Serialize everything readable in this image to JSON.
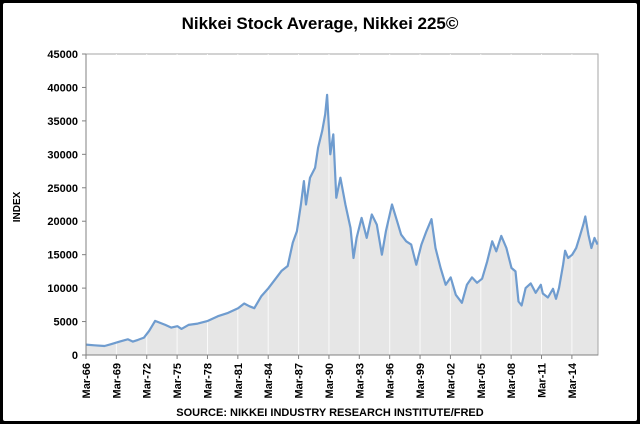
{
  "chart_data": {
    "type": "area",
    "title": "Nikkei Stock Average, Nikkei 225©",
    "ylabel": "INDEX",
    "xlabel": "SOURCE: NIKKEI INDUSTRY RESEARCH INSTITUTE/FRED",
    "ylim": [
      0,
      45000
    ],
    "yticks": [
      0,
      5000,
      10000,
      15000,
      20000,
      25000,
      30000,
      35000,
      40000,
      45000
    ],
    "xlim": [
      1966.17,
      2016.75
    ],
    "xticks": [
      {
        "label": "Mar-66",
        "year": 1966.17
      },
      {
        "label": "Mar-69",
        "year": 1969.17
      },
      {
        "label": "Mar-72",
        "year": 1972.17
      },
      {
        "label": "Mar-75",
        "year": 1975.17
      },
      {
        "label": "Mar-78",
        "year": 1978.17
      },
      {
        "label": "Mar-81",
        "year": 1981.17
      },
      {
        "label": "Mar-84",
        "year": 1984.17
      },
      {
        "label": "Mar-87",
        "year": 1987.17
      },
      {
        "label": "Mar-90",
        "year": 1990.17
      },
      {
        "label": "Mar-93",
        "year": 1993.17
      },
      {
        "label": "Mar-96",
        "year": 1996.17
      },
      {
        "label": "Mar-99",
        "year": 1999.17
      },
      {
        "label": "Mar-02",
        "year": 2002.17
      },
      {
        "label": "Mar-05",
        "year": 2005.17
      },
      {
        "label": "Mar-08",
        "year": 2008.17
      },
      {
        "label": "Mar-11",
        "year": 2011.17
      },
      {
        "label": "Mar-14",
        "year": 2014.17
      }
    ],
    "grid": {
      "horizontal": false,
      "vertical": true
    },
    "legend": "none",
    "series": [
      {
        "color": "#6f9ccf",
        "fill": "#e6e6e6",
        "points": [
          [
            1966.17,
            1550
          ],
          [
            1967.0,
            1450
          ],
          [
            1968.0,
            1350
          ],
          [
            1968.6,
            1600
          ],
          [
            1969.5,
            2000
          ],
          [
            1970.3,
            2350
          ],
          [
            1970.8,
            2000
          ],
          [
            1971.3,
            2250
          ],
          [
            1971.9,
            2600
          ],
          [
            1972.4,
            3600
          ],
          [
            1973.0,
            5100
          ],
          [
            1973.5,
            4800
          ],
          [
            1974.0,
            4500
          ],
          [
            1974.6,
            4100
          ],
          [
            1975.2,
            4300
          ],
          [
            1975.6,
            3900
          ],
          [
            1976.3,
            4500
          ],
          [
            1977.2,
            4700
          ],
          [
            1978.2,
            5100
          ],
          [
            1979.2,
            5800
          ],
          [
            1980.2,
            6300
          ],
          [
            1981.2,
            7000
          ],
          [
            1981.8,
            7700
          ],
          [
            1982.3,
            7300
          ],
          [
            1982.8,
            7000
          ],
          [
            1983.5,
            8800
          ],
          [
            1984.2,
            10000
          ],
          [
            1984.8,
            11200
          ],
          [
            1985.5,
            12600
          ],
          [
            1986.1,
            13300
          ],
          [
            1986.6,
            16800
          ],
          [
            1987.0,
            18500
          ],
          [
            1987.4,
            22500
          ],
          [
            1987.7,
            26000
          ],
          [
            1987.9,
            22500
          ],
          [
            1988.3,
            26500
          ],
          [
            1988.8,
            28000
          ],
          [
            1989.1,
            31000
          ],
          [
            1989.5,
            33500
          ],
          [
            1989.8,
            36000
          ],
          [
            1989.99,
            38900
          ],
          [
            1990.3,
            30000
          ],
          [
            1990.6,
            33000
          ],
          [
            1990.9,
            23500
          ],
          [
            1991.3,
            26500
          ],
          [
            1991.8,
            22500
          ],
          [
            1992.3,
            19000
          ],
          [
            1992.6,
            14500
          ],
          [
            1992.9,
            17500
          ],
          [
            1993.4,
            20500
          ],
          [
            1993.9,
            17500
          ],
          [
            1994.4,
            21000
          ],
          [
            1994.9,
            19500
          ],
          [
            1995.4,
            15000
          ],
          [
            1995.8,
            18500
          ],
          [
            1996.4,
            22500
          ],
          [
            1996.9,
            20000
          ],
          [
            1997.3,
            18000
          ],
          [
            1997.8,
            17000
          ],
          [
            1998.3,
            16500
          ],
          [
            1998.8,
            13500
          ],
          [
            1999.3,
            16500
          ],
          [
            1999.8,
            18500
          ],
          [
            2000.3,
            20300
          ],
          [
            2000.7,
            16000
          ],
          [
            2001.2,
            13000
          ],
          [
            2001.7,
            10500
          ],
          [
            2002.2,
            11600
          ],
          [
            2002.7,
            9000
          ],
          [
            2003.3,
            7800
          ],
          [
            2003.8,
            10500
          ],
          [
            2004.3,
            11600
          ],
          [
            2004.8,
            10800
          ],
          [
            2005.3,
            11400
          ],
          [
            2005.8,
            14000
          ],
          [
            2006.3,
            17000
          ],
          [
            2006.7,
            15500
          ],
          [
            2007.2,
            17800
          ],
          [
            2007.7,
            16000
          ],
          [
            2008.2,
            13000
          ],
          [
            2008.6,
            12500
          ],
          [
            2008.9,
            8000
          ],
          [
            2009.2,
            7400
          ],
          [
            2009.6,
            10000
          ],
          [
            2010.1,
            10700
          ],
          [
            2010.6,
            9300
          ],
          [
            2011.1,
            10500
          ],
          [
            2011.3,
            9200
          ],
          [
            2011.8,
            8600
          ],
          [
            2012.3,
            9900
          ],
          [
            2012.6,
            8400
          ],
          [
            2012.9,
            10000
          ],
          [
            2013.3,
            13500
          ],
          [
            2013.5,
            15600
          ],
          [
            2013.8,
            14500
          ],
          [
            2014.2,
            15000
          ],
          [
            2014.6,
            16000
          ],
          [
            2014.9,
            17500
          ],
          [
            2015.3,
            19500
          ],
          [
            2015.5,
            20700
          ],
          [
            2015.8,
            18000
          ],
          [
            2016.1,
            16000
          ],
          [
            2016.4,
            17500
          ],
          [
            2016.7,
            16500
          ]
        ]
      }
    ]
  }
}
